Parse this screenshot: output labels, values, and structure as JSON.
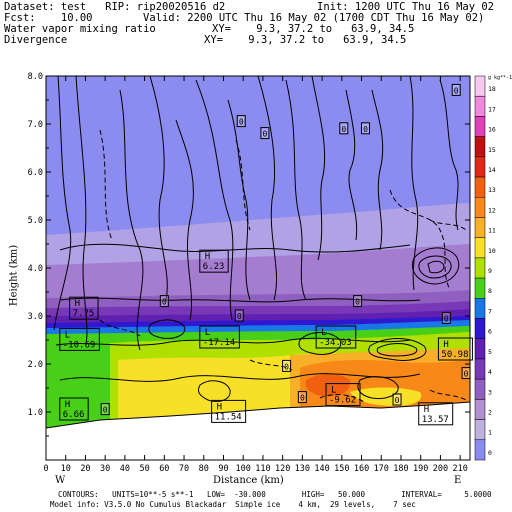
{
  "header": {
    "dataset": "Dataset: test   RIP: rip20020516 d2",
    "init": "Init: 1200 UTC Thu 16 May 02",
    "fcst": "Fcst:    10.00",
    "valid": "Valid: 2200 UTC Thu 16 May 02 (1700 CDT Thu 16 May 02)",
    "field1": "Water vapor mixing ratio",
    "xy1": "XY=    9.3, 37.2 to   63.9, 34.5",
    "field2": "Divergence",
    "xy2": "XY=    9.3, 37.2 to   63.9, 34.5"
  },
  "footer": {
    "line1": "CONTOURS:   UNITS=10**-5 s**-1   LOW=  -30.000        HIGH=   50.000        INTERVAL=     5.0000",
    "line2": "Model info: V3.5.0 No Cumulus Blackadar  Simple ice    4 km,  29 levels,    7 sec"
  },
  "colorbar": {
    "unit": "g kg**-1",
    "labels": [
      "18",
      "17",
      "16",
      "15",
      "14",
      "13",
      "12",
      "11",
      "10",
      "9",
      "8",
      "7",
      "6",
      "5",
      "4",
      "3",
      "2",
      "1",
      "0"
    ],
    "colors": [
      "#f8c8f0",
      "#f088e0",
      "#e040b8",
      "#c01010",
      "#e02818",
      "#f06010",
      "#f88818",
      "#f8b028",
      "#f8e028",
      "#b0e000",
      "#48d018",
      "#1878e8",
      "#3018d0",
      "#6020b0",
      "#7838b8",
      "#9060c0",
      "#b090d0",
      "#c0b0e0",
      "#8c8cf0"
    ]
  },
  "chart_data": {
    "type": "cross-section",
    "xlabel": "Distance (km)",
    "ylabel": "Height (km)",
    "xlim": [
      0,
      215
    ],
    "ylim": [
      0,
      8
    ],
    "xticks": [
      "0",
      "10",
      "20",
      "30",
      "40",
      "50",
      "60",
      "70",
      "80",
      "90",
      "100",
      "110",
      "120",
      "130",
      "140",
      "150",
      "160",
      "170",
      "180",
      "190",
      "200",
      "210"
    ],
    "yticks": [
      "1.0",
      "2.0",
      "3.0",
      "4.0",
      "5.0",
      "6.0",
      "7.0",
      "8.0"
    ],
    "left_end": "W",
    "right_end": "E",
    "shaded_field": "Water vapor mixing ratio",
    "contour_field": "Divergence",
    "labels": [
      {
        "text": "H",
        "value": "7.75",
        "x": 13,
        "y": 3.1
      },
      {
        "text": "L",
        "value": "-10.69",
        "x": 8,
        "y": 2.45
      },
      {
        "text": "H",
        "value": "6.66",
        "x": 8,
        "y": 1.0
      },
      {
        "text": "H",
        "value": "6.23",
        "x": 79,
        "y": 4.08
      },
      {
        "text": "L",
        "value": "-17.14",
        "x": 79,
        "y": 2.5
      },
      {
        "text": "H",
        "value": "11.54",
        "x": 85,
        "y": 0.95
      },
      {
        "text": "L",
        "value": "-34.03",
        "x": 138,
        "y": 2.5
      },
      {
        "text": "L",
        "value": "-9.62",
        "x": 143,
        "y": 1.3
      },
      {
        "text": "H",
        "value": "50.98",
        "x": 200,
        "y": 2.25
      },
      {
        "text": "H",
        "value": "13.57",
        "x": 190,
        "y": 0.9
      }
    ],
    "zero_labels": [
      {
        "x": 30,
        "y": 1.05
      },
      {
        "x": 60,
        "y": 3.3
      },
      {
        "x": 99,
        "y": 7.05
      },
      {
        "x": 111,
        "y": 6.8
      },
      {
        "x": 151,
        "y": 6.9
      },
      {
        "x": 162,
        "y": 6.9
      },
      {
        "x": 208,
        "y": 7.7
      },
      {
        "x": 98,
        "y": 3.0
      },
      {
        "x": 122,
        "y": 1.95
      },
      {
        "x": 130,
        "y": 1.3
      },
      {
        "x": 158,
        "y": 3.3
      },
      {
        "x": 178,
        "y": 1.25
      },
      {
        "x": 203,
        "y": 2.95
      },
      {
        "x": 213,
        "y": 1.8
      }
    ]
  }
}
